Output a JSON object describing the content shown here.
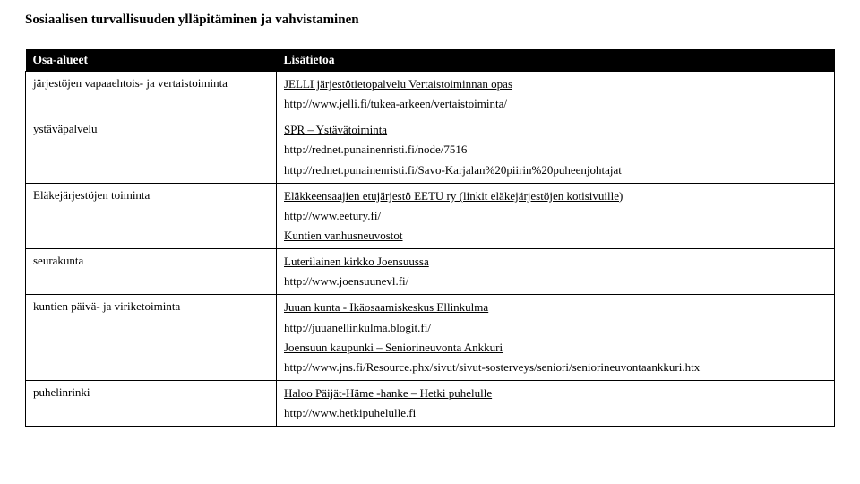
{
  "title": "Sosiaalisen turvallisuuden ylläpitäminen ja vahvistaminen",
  "headers": {
    "col1": "Osa-alueet",
    "col2": "Lisätietoa"
  },
  "rows": [
    {
      "left": "järjestöjen vapaaehtois- ja vertaistoiminta",
      "lines": [
        {
          "text": "JELLI järjestötietopalvelu Vertaistoiminnan opas",
          "underline": true
        },
        {
          "text": "http://www.jelli.fi/tukea-arkeen/vertaistoiminta/",
          "underline": false
        }
      ]
    },
    {
      "left": "ystäväpalvelu",
      "lines": [
        {
          "text": "SPR – Ystävätoiminta",
          "underline": true
        },
        {
          "text": "http://rednet.punainenristi.fi/node/7516",
          "underline": false
        },
        {
          "text": "http://rednet.punainenristi.fi/Savo-Karjalan%20piirin%20puheenjohtajat",
          "underline": false
        }
      ]
    },
    {
      "left": "Eläkejärjestöjen toiminta",
      "lines": [
        {
          "text": "Eläkkeensaajien etujärjestö EETU ry (linkit eläkejärjestöjen kotisivuille)",
          "underline": true
        },
        {
          "text": "http://www.eetury.fi/",
          "underline": false
        },
        {
          "text": "Kuntien vanhusneuvostot",
          "underline": true
        }
      ]
    },
    {
      "left": "seurakunta",
      "lines": [
        {
          "text": "Luterilainen kirkko Joensuussa",
          "underline": true
        },
        {
          "text": "http://www.joensuunevl.fi/",
          "underline": false
        }
      ]
    },
    {
      "left": "kuntien päivä- ja viriketoiminta",
      "lines": [
        {
          "text": "Juuan kunta - Ikäosaamiskeskus Ellinkulma",
          "underline": true
        },
        {
          "text": "http://juuanellinkulma.blogit.fi/",
          "underline": false
        },
        {
          "text": "Joensuun kaupunki – Seniorineuvonta Ankkuri",
          "underline": true
        },
        {
          "text": "http://www.jns.fi/Resource.phx/sivut/sivut-sosterveys/seniori/seniorineuvontaankkuri.htx",
          "underline": false
        }
      ]
    },
    {
      "left": "puhelinrinki",
      "lines": [
        {
          "text": "Haloo Päijät-Häme -hanke – Hetki puhelulle",
          "underline": true
        },
        {
          "text": "http://www.hetkipuhelulle.fi",
          "underline": false
        }
      ]
    }
  ]
}
